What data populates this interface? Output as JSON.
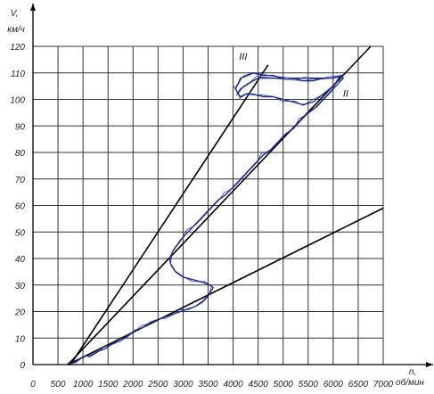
{
  "chart_data": {
    "type": "line",
    "title": "",
    "xlabel_lines": [
      "n,",
      "об/мин"
    ],
    "ylabel_lines": [
      "V,",
      "км/ч"
    ],
    "xlim": [
      0,
      7000
    ],
    "ylim": [
      0,
      120
    ],
    "x_ticks": [
      0,
      500,
      1000,
      1500,
      2000,
      2500,
      3000,
      3500,
      4000,
      4500,
      5000,
      5500,
      6000,
      6500,
      7000
    ],
    "y_ticks": [
      0,
      10,
      20,
      30,
      40,
      50,
      60,
      70,
      80,
      90,
      100,
      110,
      120
    ],
    "grid": true,
    "gear_lines": [
      {
        "label": "III",
        "x": [
          750,
          4700
        ],
        "y": [
          0,
          113
        ],
        "label_x": 4200,
        "label_y": 115
      },
      {
        "label": "II",
        "x": [
          700,
          6750
        ],
        "y": [
          0,
          120
        ],
        "label_x": 6250,
        "label_y": 101
      },
      {
        "label": "",
        "x": [
          700,
          7000
        ],
        "y": [
          0,
          59
        ],
        "label_x": null,
        "label_y": null
      }
    ],
    "series": [
      {
        "color": "#1f2d8a",
        "x": [
          720,
          850,
          1000,
          1150,
          1300,
          1450,
          1600,
          1750,
          1900,
          2050,
          2200,
          2350,
          2500,
          2650,
          2800,
          2950,
          3100,
          3250,
          3400,
          3500,
          3600,
          3550,
          3400,
          3200,
          3000,
          2850,
          2750,
          2730,
          2800,
          2950,
          3100,
          3250,
          3400,
          3550,
          3700,
          3850,
          4000,
          4150,
          4300,
          4450,
          4600,
          4750,
          4900,
          5050,
          5200,
          5350,
          5500,
          5650,
          5800,
          5950,
          6100,
          6200,
          6150,
          6000,
          5800,
          5600,
          5400,
          5200,
          5000,
          4800,
          4600,
          4400,
          4250,
          4150,
          4100,
          4050,
          4100,
          4150,
          4250,
          4400,
          4600,
          4800,
          5000,
          5200,
          5400,
          5600,
          5800,
          6000,
          6150,
          6200,
          6000,
          5700,
          5400,
          5100,
          4800,
          4500,
          4300,
          4150,
          4080
        ],
        "y": [
          0,
          1,
          3,
          3.5,
          5,
          6,
          8,
          9,
          11,
          13,
          14,
          16,
          17,
          18,
          19,
          20,
          21,
          22,
          24,
          26,
          29,
          30,
          31,
          32,
          33,
          35,
          38,
          40,
          43,
          47,
          50,
          53,
          56,
          59,
          62,
          64,
          67,
          70,
          73,
          76,
          79,
          81,
          84,
          87,
          89,
          92,
          95,
          97,
          100,
          103,
          106,
          108,
          109,
          105,
          102,
          99,
          98,
          99,
          100,
          101,
          101,
          102,
          102,
          101,
          102,
          104,
          106,
          108,
          109,
          110,
          109,
          109,
          108,
          108,
          107,
          107,
          108,
          108,
          109,
          109,
          108,
          108,
          108,
          108,
          108,
          108,
          106,
          104,
          102
        ]
      }
    ]
  }
}
